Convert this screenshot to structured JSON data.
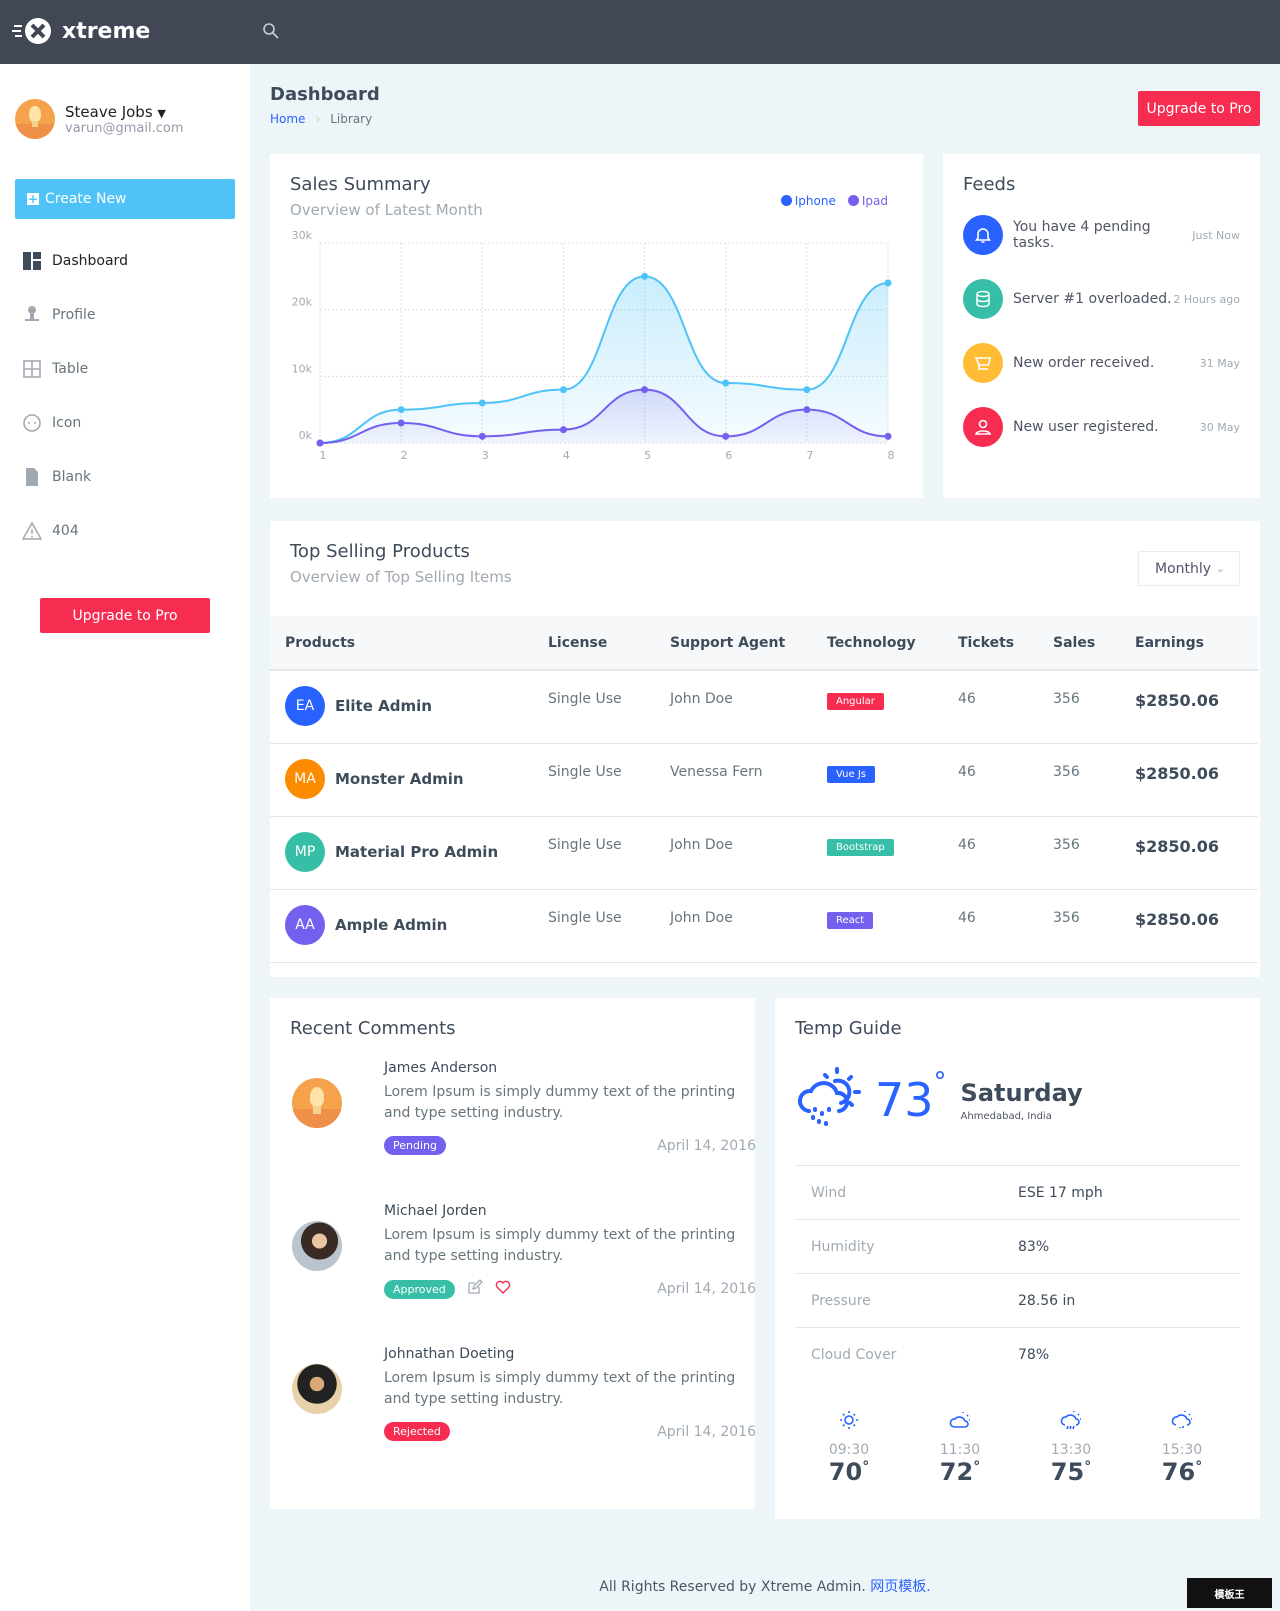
{
  "brand": {
    "name": "xtreme"
  },
  "user": {
    "name": "Steave Jobs",
    "email": "varun@gmail.com"
  },
  "sidebar": {
    "create_label": "Create New",
    "items": [
      {
        "label": "Dashboard"
      },
      {
        "label": "Profile"
      },
      {
        "label": "Table"
      },
      {
        "label": "Icon"
      },
      {
        "label": "Blank"
      },
      {
        "label": "404"
      }
    ],
    "upgrade_label": "Upgrade to Pro"
  },
  "page": {
    "title": "Dashboard",
    "breadcrumb": [
      "Home",
      "Library"
    ],
    "upgrade_label": "Upgrade to Pro"
  },
  "sales": {
    "title": "Sales Summary",
    "subtitle": "Overview of Latest Month"
  },
  "chart_data": {
    "type": "area",
    "title": "Sales Summary",
    "x": [
      1,
      2,
      3,
      4,
      5,
      6,
      7,
      8
    ],
    "xticks": [
      "1",
      "2",
      "3",
      "4",
      "5",
      "6",
      "7",
      "8"
    ],
    "yticks": [
      "0k",
      "10k",
      "20k",
      "30k"
    ],
    "ylim": [
      0,
      30
    ],
    "grid": true,
    "legend": "top-right",
    "series": [
      {
        "name": "Iphone",
        "color": "#4fc3f7",
        "legend_color": "#2962ff",
        "values": [
          0,
          5,
          6,
          8,
          25,
          9,
          8,
          24
        ]
      },
      {
        "name": "Ipad",
        "color": "#7460ee",
        "legend_color": "#7460ee",
        "values": [
          0,
          3,
          1,
          2,
          8,
          1,
          5,
          1
        ]
      }
    ]
  },
  "feeds": {
    "title": "Feeds",
    "items": [
      {
        "text": "You have 4 pending tasks.",
        "time": "Just Now",
        "icon": "bell-icon",
        "color": "#2962ff"
      },
      {
        "text": "Server #1 overloaded.",
        "time": "2 Hours ago",
        "icon": "database-icon",
        "color": "#36bea6"
      },
      {
        "text": "New order received.",
        "time": "31 May",
        "icon": "cart-icon",
        "color": "#ffbc34"
      },
      {
        "text": "New user registered.",
        "time": "30 May",
        "icon": "user-icon",
        "color": "#f62d51"
      }
    ]
  },
  "products": {
    "title": "Top Selling Products",
    "subtitle": "Overview of Top Selling Items",
    "filter": "Monthly",
    "columns": [
      "Products",
      "License",
      "Support Agent",
      "Technology",
      "Tickets",
      "Sales",
      "Earnings"
    ],
    "rows": [
      {
        "initials": "EA",
        "name": "Elite Admin",
        "license": "Single Use",
        "agent": "John Doe",
        "tech": "Angular",
        "tickets": "46",
        "sales": "356",
        "earnings": "$2850.06",
        "color": "#2962ff",
        "tech_color": "#f62d51"
      },
      {
        "initials": "MA",
        "name": "Monster Admin",
        "license": "Single Use",
        "agent": "Venessa Fern",
        "tech": "Vue Js",
        "tickets": "46",
        "sales": "356",
        "earnings": "$2850.06",
        "color": "#fb8c00",
        "tech_color": "#2962ff"
      },
      {
        "initials": "MP",
        "name": "Material Pro Admin",
        "license": "Single Use",
        "agent": "John Doe",
        "tech": "Bootstrap",
        "tickets": "46",
        "sales": "356",
        "earnings": "$2850.06",
        "color": "#36bea6",
        "tech_color": "#36bea6"
      },
      {
        "initials": "AA",
        "name": "Ample Admin",
        "license": "Single Use",
        "agent": "John Doe",
        "tech": "React",
        "tickets": "46",
        "sales": "356",
        "earnings": "$2850.06",
        "color": "#7460ee",
        "tech_color": "#7460ee"
      }
    ]
  },
  "comments": {
    "title": "Recent Comments",
    "items": [
      {
        "name": "James Anderson",
        "text": "Lorem Ipsum is simply dummy text of the printing and type setting industry.",
        "status": "Pending",
        "status_color": "#7460ee",
        "date": "April 14, 2016"
      },
      {
        "name": "Michael Jorden",
        "text": "Lorem Ipsum is simply dummy text of the printing and type setting industry.",
        "status": "Approved",
        "status_color": "#36bea6",
        "date": "April 14, 2016"
      },
      {
        "name": "Johnathan Doeting",
        "text": "Lorem Ipsum is simply dummy text of the printing and type setting industry.",
        "status": "Rejected",
        "status_color": "#f62d51",
        "date": "April 14, 2016"
      }
    ]
  },
  "weather": {
    "title": "Temp Guide",
    "temp": "73",
    "degree": "°",
    "day": "Saturday",
    "location": "Ahmedabad, India",
    "stats": [
      {
        "label": "Wind",
        "value": "ESE 17 mph"
      },
      {
        "label": "Humidity",
        "value": "83%"
      },
      {
        "label": "Pressure",
        "value": "28.56 in"
      },
      {
        "label": "Cloud Cover",
        "value": "78%"
      }
    ],
    "forecast": [
      {
        "time": "09:30",
        "temp": "70",
        "icon": "sun-icon"
      },
      {
        "time": "11:30",
        "temp": "72",
        "icon": "cloud-sun-icon"
      },
      {
        "time": "13:30",
        "temp": "75",
        "icon": "cloud-rain-sun-icon"
      },
      {
        "time": "15:30",
        "temp": "76",
        "icon": "cloud-drizzle-sun-icon"
      }
    ]
  },
  "footer": {
    "text": "All Rights Reserved by Xtreme Admin.",
    "link": "网页模板."
  },
  "watermark": "模板王 MOBANWANG.COM"
}
